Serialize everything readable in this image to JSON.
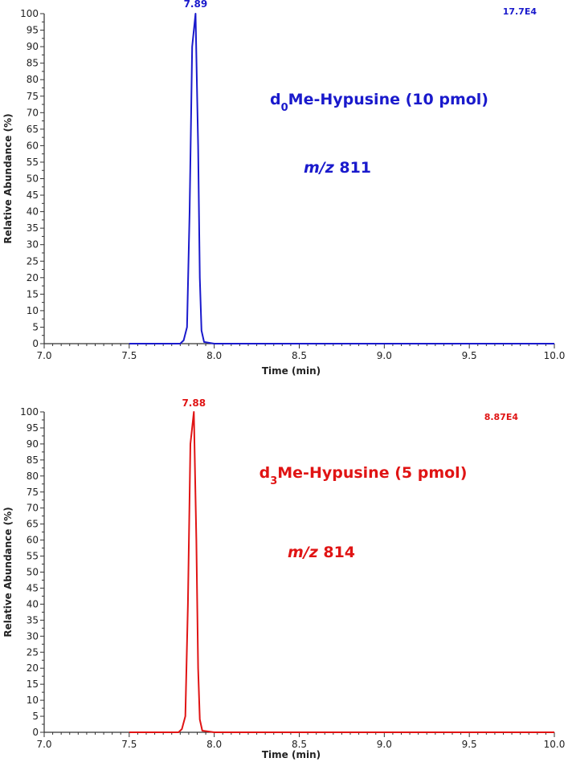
{
  "chart_data": [
    {
      "type": "line",
      "color": "#1a1acc",
      "xlabel": "Time (min)",
      "ylabel": "Relative Abundance  (%)",
      "xlim": [
        7.0,
        10.0
      ],
      "ylim": [
        0,
        100
      ],
      "xticks": [
        "7.0",
        "7.5",
        "8.0",
        "8.5",
        "9.0",
        "9.5",
        "10.0"
      ],
      "yticks": [
        "0",
        "5",
        "10",
        "15",
        "20",
        "25",
        "30",
        "35",
        "40",
        "45",
        "50",
        "55",
        "60",
        "65",
        "70",
        "75",
        "80",
        "85",
        "90",
        "95",
        "100"
      ],
      "peak_label": "7.89",
      "normalization_label": "17.7E4",
      "compound": {
        "prefix": "d",
        "subscript": "0",
        "rest": "Me-Hypusine (10 pmol)"
      },
      "mz": {
        "italic": "m/z",
        "value": "811"
      },
      "series": [
        {
          "x": [
            7.5,
            7.8,
            7.82,
            7.84,
            7.855,
            7.87,
            7.89,
            7.905,
            7.915,
            7.925,
            7.94,
            8.0,
            8.5,
            9.0,
            9.5,
            10.0
          ],
          "values": [
            0,
            0,
            1,
            5,
            40,
            90,
            100,
            60,
            20,
            4,
            0.5,
            0,
            0,
            0,
            0,
            0
          ]
        }
      ]
    },
    {
      "type": "line",
      "color": "#e01414",
      "xlabel": "Time (min)",
      "ylabel": "Relative Abundance  (%)",
      "xlim": [
        7.0,
        10.0
      ],
      "ylim": [
        0,
        100
      ],
      "xticks": [
        "7.0",
        "7.5",
        "8.0",
        "8.5",
        "9.0",
        "9.5",
        "10.0"
      ],
      "yticks": [
        "0",
        "5",
        "10",
        "15",
        "20",
        "25",
        "30",
        "35",
        "40",
        "45",
        "50",
        "55",
        "60",
        "65",
        "70",
        "75",
        "80",
        "85",
        "90",
        "95",
        "100"
      ],
      "peak_label": "7.88",
      "normalization_label": "8.87E4",
      "compound": {
        "prefix": "d",
        "subscript": "3",
        "rest": "Me-Hypusine (5 pmol)"
      },
      "mz": {
        "italic": "m/z",
        "value": "814"
      },
      "series": [
        {
          "x": [
            7.5,
            7.79,
            7.81,
            7.83,
            7.845,
            7.86,
            7.88,
            7.895,
            7.905,
            7.915,
            7.93,
            8.0,
            8.5,
            9.0,
            9.5,
            10.0
          ],
          "values": [
            0,
            0,
            1,
            5,
            40,
            90,
            100,
            60,
            20,
            4,
            0.5,
            0,
            0,
            0,
            0,
            0
          ]
        }
      ]
    }
  ]
}
